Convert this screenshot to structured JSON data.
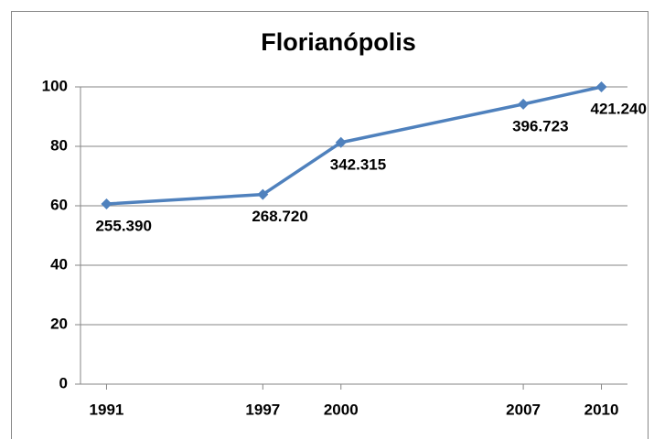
{
  "chart_data": {
    "type": "line",
    "title": "Florianópolis",
    "x": [
      1991,
      1997,
      2000,
      2007,
      2010
    ],
    "series": [
      {
        "color": "#4f81bd",
        "values": [
          60.6,
          63.8,
          81.3,
          94.2,
          100
        ]
      }
    ],
    "annotations": [
      "255.390",
      "268.720",
      "342.315",
      "396.723",
      "421.240"
    ],
    "xlim": [
      1990,
      2011
    ],
    "xticks": [
      1991,
      1997,
      2000,
      2007,
      2010
    ],
    "ylim": [
      0,
      100
    ],
    "yticks": [
      0,
      20,
      40,
      60,
      80,
      100
    ],
    "grid": true
  }
}
